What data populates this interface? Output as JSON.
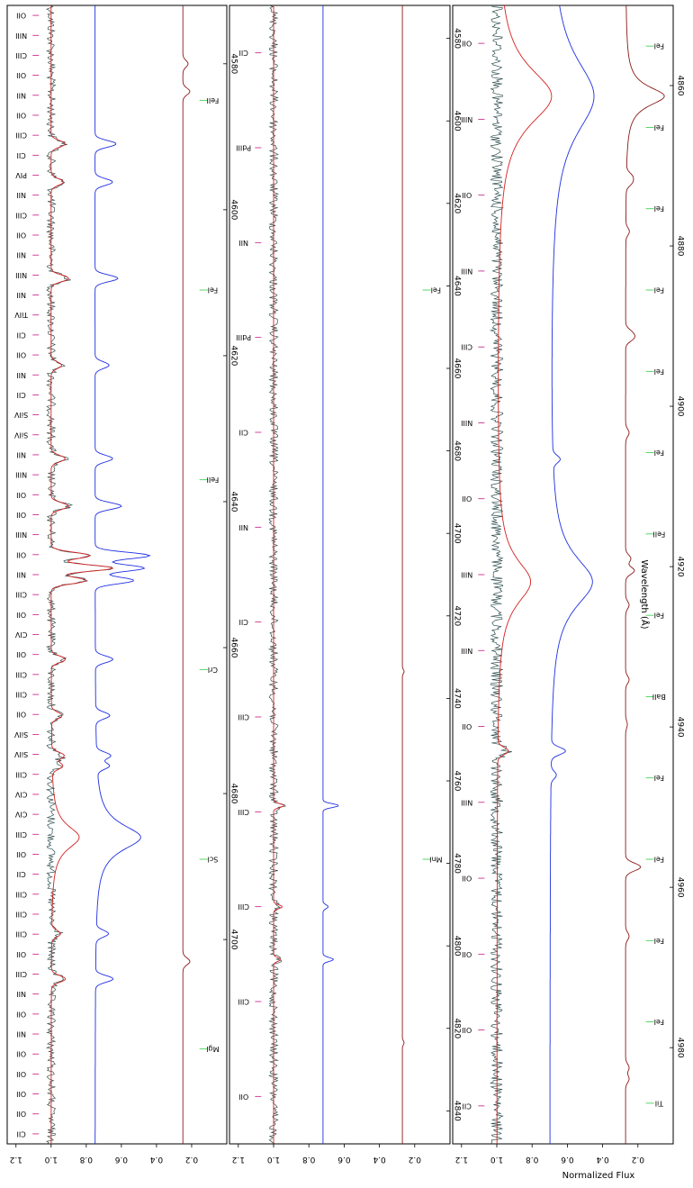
{
  "figure": {
    "xlabel": "Wavelength (Å)",
    "ylabel": "Normalized Flux"
  },
  "chart_data": [
    {
      "type": "line",
      "panel": 1,
      "xlim": [
        4572,
        4728
      ],
      "ylim": [
        0.0,
        1.25
      ],
      "xticks": [
        4580,
        4600,
        4620,
        4640,
        4660,
        4680,
        4700
      ],
      "yticks": [
        0.2,
        0.4,
        0.6,
        0.8,
        1.0,
        1.2
      ],
      "series": [
        {
          "color": "#2f4f4f",
          "baseline": 1.0,
          "noise": 0.025,
          "features": [
            [
              4590.97,
              0.08
            ],
            [
              4596.2,
              0.07
            ],
            [
              4609.4,
              0.1
            ],
            [
              4621.3,
              0.06
            ],
            [
              4634.1,
              0.08
            ],
            [
              4640.6,
              0.1
            ],
            [
              4647.4,
              0.22
            ],
            [
              4649.1,
              0.35
            ],
            [
              4650.8,
              0.2
            ],
            [
              4661.6,
              0.08
            ],
            [
              4669.3,
              0.06
            ],
            [
              4674.8,
              0.07
            ],
            [
              4676.2,
              0.06
            ],
            [
              4699.2,
              0.05
            ],
            [
              4705.4,
              0.08
            ]
          ]
        },
        {
          "color": "#d42020",
          "baseline": 1.0,
          "noise": 0.0,
          "features": [
            [
              4590.97,
              0.08
            ],
            [
              4596.2,
              0.07
            ],
            [
              4609.4,
              0.1
            ],
            [
              4621.3,
              0.06
            ],
            [
              4634.1,
              0.08
            ],
            [
              4640.6,
              0.1
            ],
            [
              4647.4,
              0.22
            ],
            [
              4649.1,
              0.35
            ],
            [
              4650.8,
              0.2
            ],
            [
              4661.6,
              0.08
            ],
            [
              4669.3,
              0.06
            ],
            [
              4674.8,
              0.07
            ],
            [
              4676.2,
              0.06
            ],
            [
              4699.2,
              0.05
            ],
            [
              4705.4,
              0.08
            ]
          ],
          "broad": [
            [
              4686.0,
              0.16,
              2.0
            ]
          ]
        },
        {
          "color": "#1f2fe0",
          "baseline": 0.75,
          "noise": 0.0,
          "features": [
            [
              4590.97,
              0.12
            ],
            [
              4596.2,
              0.1
            ],
            [
              4609.4,
              0.13
            ],
            [
              4621.3,
              0.08
            ],
            [
              4634.1,
              0.1
            ],
            [
              4640.6,
              0.15
            ],
            [
              4647.4,
              0.31
            ],
            [
              4649.1,
              0.28
            ],
            [
              4650.8,
              0.22
            ],
            [
              4661.6,
              0.1
            ],
            [
              4669.3,
              0.08
            ],
            [
              4674.8,
              0.08
            ],
            [
              4676.2,
              0.07
            ],
            [
              4699.2,
              0.07
            ],
            [
              4705.4,
              0.1
            ]
          ],
          "broad": [
            [
              4686.0,
              0.26,
              2.2
            ]
          ]
        },
        {
          "color": "#8b1a1a",
          "baseline": 0.25,
          "noise": 0.0,
          "features": [
            [
              4580.0,
              0.03
            ],
            [
              4583.8,
              0.04
            ],
            [
              4703.0,
              0.04
            ]
          ]
        }
      ],
      "ion_labels": [
        "OII",
        "NIII",
        "CIII",
        "OII",
        "NII",
        "OII",
        "CIII",
        "CII",
        "PIV",
        "NII",
        "CIII",
        "OII",
        "NII",
        "NIII",
        "NII",
        "TiIV",
        "CII",
        "OII",
        "NII",
        "CII",
        "SiIV",
        "SiIV",
        "NII",
        "NIII",
        "OII",
        "OII",
        "NIII",
        "OII",
        "NII",
        "CIII",
        "OII",
        "CIV",
        "OII",
        "CIII",
        "CIII",
        "OII",
        "SiIV",
        "SiIV",
        "CIII",
        "CIV",
        "CIV",
        "CIII",
        "OII",
        "CII",
        "CIII",
        "CIII",
        "CIII",
        "OII",
        "CIII",
        "NII",
        "OII",
        "NII",
        "OII",
        "OII",
        "OII",
        "OII",
        "CII"
      ],
      "metal_labels": [
        "FeII",
        "FeI",
        "FeII",
        "CrI",
        "ScI",
        "MgI"
      ]
    },
    {
      "type": "line",
      "panel": 2,
      "xlim": [
        4572,
        4848
      ],
      "ylim": [
        0.0,
        1.25
      ],
      "xticks": [
        4580,
        4600,
        4620,
        4640,
        4660,
        4680,
        4700,
        4720,
        4740,
        4760,
        4780,
        4800,
        4820,
        4840
      ],
      "series": [
        {
          "color": "#2f4f4f",
          "baseline": 1.0,
          "noise": 0.025,
          "features": [
            [
              4766.0,
              0.06
            ],
            [
              4790.5,
              0.05
            ],
            [
              4803.3,
              0.04
            ]
          ]
        },
        {
          "color": "#d42020",
          "baseline": 1.0,
          "noise": 0.0,
          "features": [
            [
              4766.0,
              0.06
            ],
            [
              4790.5,
              0.05
            ],
            [
              4803.3,
              0.04
            ]
          ]
        },
        {
          "color": "#1f2fe0",
          "baseline": 0.72,
          "noise": 0.0,
          "features": [
            [
              4766.0,
              0.09
            ],
            [
              4790.5,
              0.03
            ],
            [
              4803.3,
              0.06
            ]
          ]
        },
        {
          "color": "#8b1a1a",
          "baseline": 0.27,
          "noise": 0.0,
          "features": [
            [
              4733.5,
              0.01
            ],
            [
              4823.5,
              0.01
            ]
          ]
        }
      ],
      "ion_labels": [
        "CII",
        "PdIII",
        "NII",
        "PdIII",
        "CII",
        "NII",
        "CII",
        "CIII",
        "CIII",
        "CIII",
        "CIII",
        "OII"
      ],
      "metal_labels": [
        "FeI",
        "MnI"
      ]
    },
    {
      "type": "line",
      "panel": 3,
      "xlim": [
        4850,
        4992
      ],
      "ylim": [
        0.0,
        1.25
      ],
      "xticks": [
        4860,
        4880,
        4900,
        4920,
        4940,
        4960,
        4980
      ],
      "series": [
        {
          "color": "#2f4f4f",
          "baseline": 1.0,
          "noise": 0.035,
          "features": [
            [
              4943.0,
              0.06
            ]
          ]
        },
        {
          "color": "#d42020",
          "baseline": 1.0,
          "noise": 0.0,
          "features": [
            [
              4943.0,
              0.06
            ]
          ],
          "broad": [
            [
              4861.33,
              0.31,
              4.5
            ],
            [
              4921.9,
              0.19,
              3.5
            ]
          ]
        },
        {
          "color": "#1f2fe0",
          "baseline": 0.7,
          "noise": 0.0,
          "features": [
            [
              4943.0,
              0.08
            ],
            [
              4946.0,
              0.03
            ],
            [
              4906.6,
              0.04
            ]
          ],
          "broad": [
            [
              4861.33,
              0.25,
              6.0
            ],
            [
              4921.9,
              0.24,
              4.0
            ]
          ]
        },
        {
          "color": "#8b1a1a",
          "baseline": 0.27,
          "noise": 0.0,
          "features": [
            [
              4871.3,
              0.03
            ],
            [
              4872.1,
              0.03
            ],
            [
              4878.2,
              0.02
            ],
            [
              4891.5,
              0.04
            ],
            [
              4890.8,
              0.03
            ],
            [
              4903.3,
              0.02
            ],
            [
              4919.0,
              0.03
            ],
            [
              4920.5,
              0.05
            ],
            [
              4924.8,
              0.02
            ],
            [
              4934.1,
              0.02
            ],
            [
              4939.7,
              0.01
            ],
            [
              4957.3,
              0.04
            ],
            [
              4957.6,
              0.05
            ],
            [
              4966.1,
              0.02
            ],
            [
              4982.5,
              0.02
            ],
            [
              4983.9,
              0.02
            ]
          ],
          "broad": [
            [
              4861.33,
              0.22,
              1.5
            ]
          ]
        }
      ],
      "ion_labels": [
        "OII",
        "NIII",
        "OII",
        "NIII",
        "CIII",
        "NIII",
        "OII",
        "NIII",
        "NIII",
        "OII",
        "NIII",
        "OII",
        "OII",
        "OII",
        "CII"
      ],
      "metal_labels": [
        "FeI",
        "FeI",
        "FeI",
        "FeI",
        "FeI",
        "FeI",
        "FeII",
        "FeI",
        "BaII",
        "FeI",
        "FeI",
        "FeI",
        "FeI",
        "TiI"
      ]
    }
  ]
}
